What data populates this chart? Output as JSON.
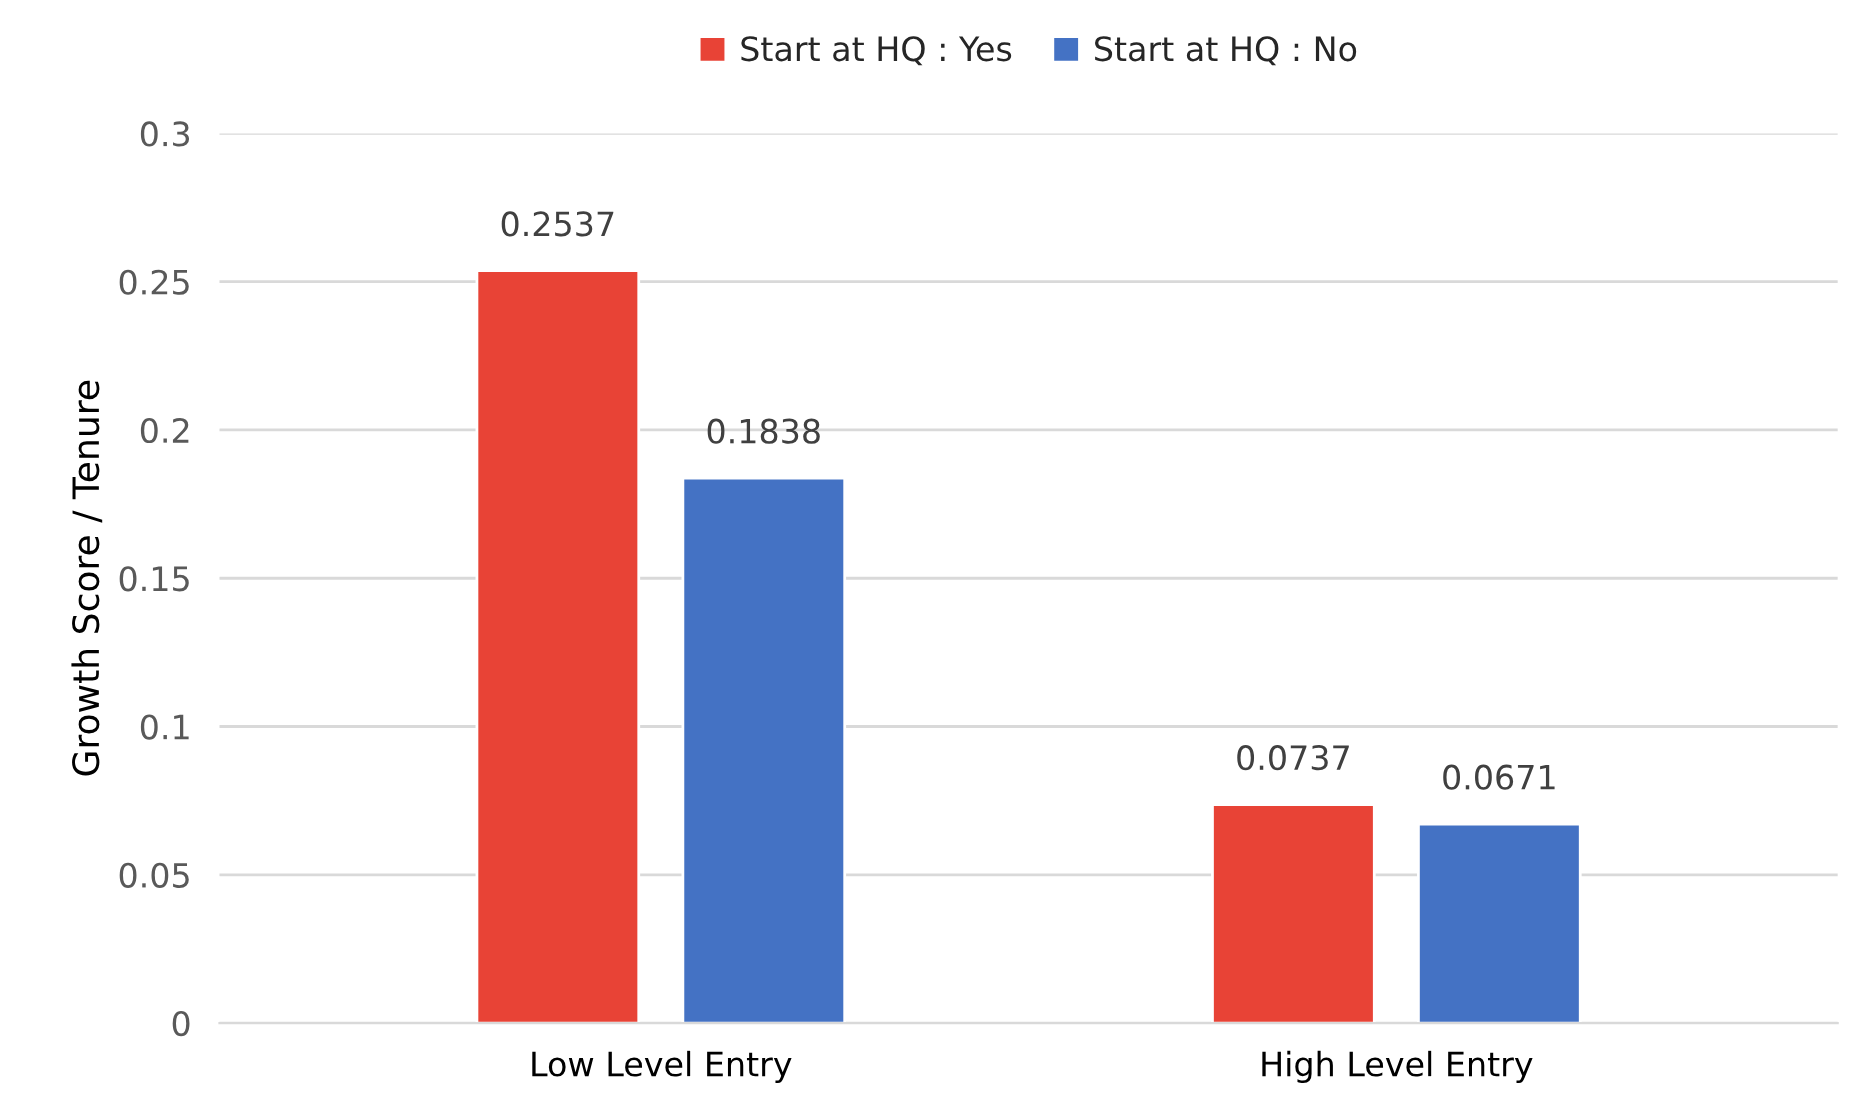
{
  "chart_data": {
    "type": "bar",
    "ylabel": "Growth Score / Tenure",
    "categories": [
      "Low Level Entry",
      "High Level Entry"
    ],
    "series": [
      {
        "name": "Start at HQ : Yes",
        "color": "#e84336",
        "values": [
          0.2537,
          0.0737
        ]
      },
      {
        "name": "Start at HQ : No",
        "color": "#4472c4",
        "values": [
          0.1838,
          0.0671
        ]
      }
    ],
    "ylim": [
      0,
      0.3
    ],
    "yticks": [
      0,
      0.05,
      0.1,
      0.15,
      0.2,
      0.25,
      0.3
    ],
    "grid": "y",
    "legend": "top",
    "data_labels": true
  }
}
